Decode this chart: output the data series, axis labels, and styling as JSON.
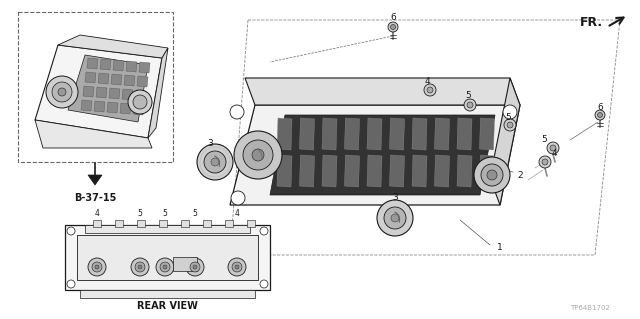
{
  "background_color": "#ffffff",
  "line_color": "#1a1a1a",
  "watermark": "TP64B1702",
  "fr_label": "FR.",
  "b3715_label": "B-37-15",
  "rear_view_label": "REAR VIEW",
  "part_label_1": "1",
  "part_label_2": "2",
  "part_label_3": "3",
  "part_label_4": "4",
  "part_label_5": "5",
  "part_label_6": "6"
}
